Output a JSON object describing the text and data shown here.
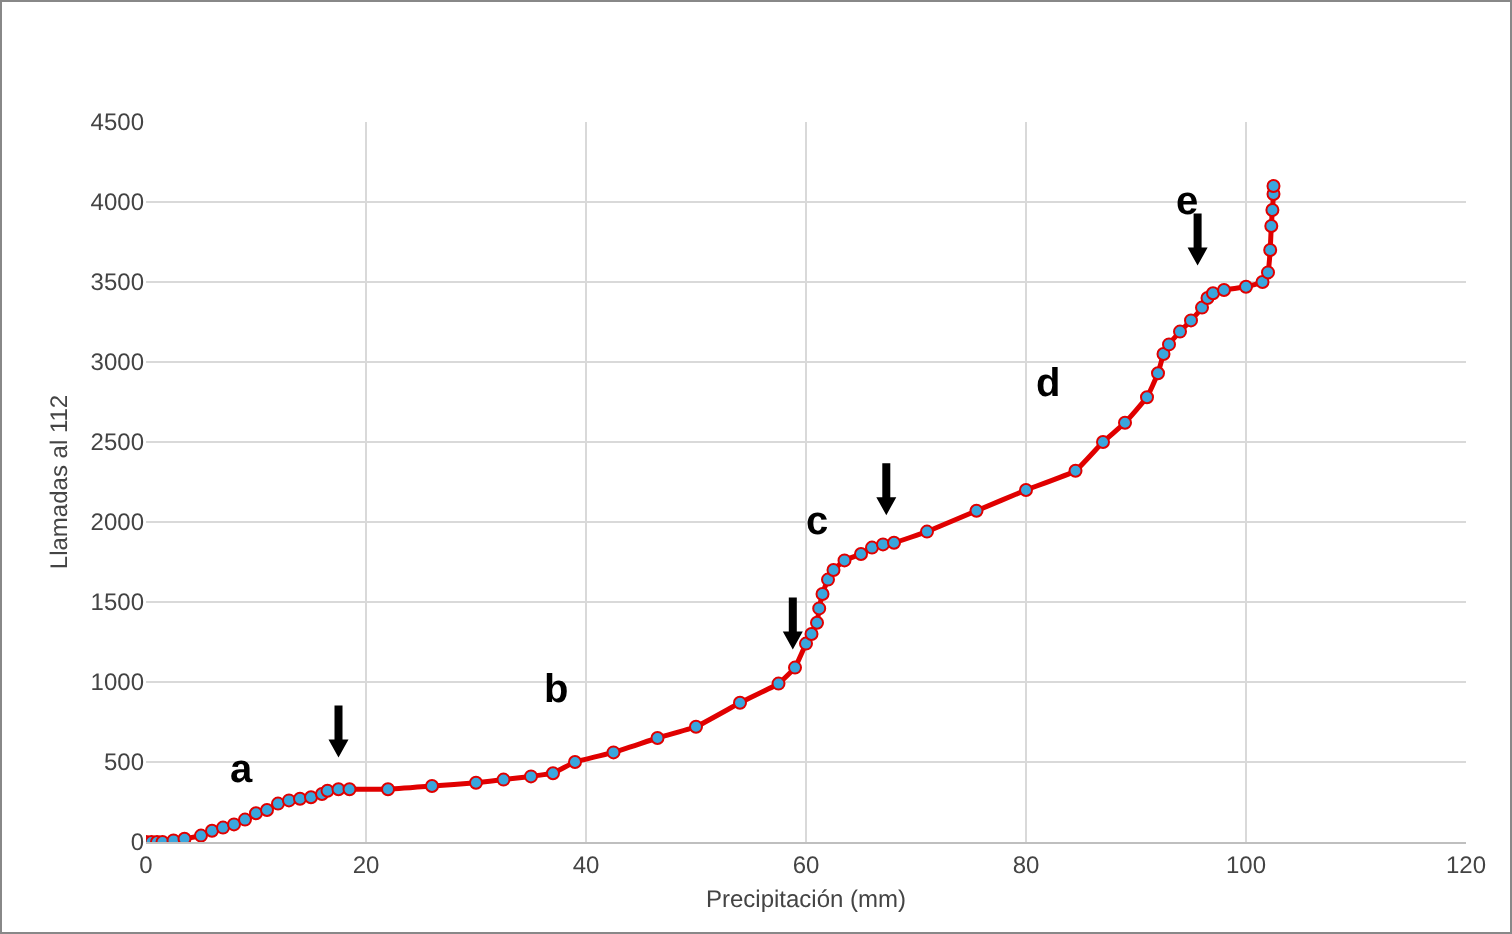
{
  "chart_data": {
    "type": "line",
    "xlabel": "Precipitación (mm)",
    "ylabel": "Llamadas al 112",
    "xlim": [
      0,
      120
    ],
    "xticks": [
      0,
      20,
      40,
      60,
      80,
      100,
      120
    ],
    "ylim": [
      0,
      4500
    ],
    "yticks": [
      0,
      500,
      1000,
      1500,
      2000,
      2500,
      3000,
      3500,
      4000,
      4500
    ],
    "grid": true,
    "marker": "circle",
    "line_style": "solid",
    "series": [
      {
        "color": "#e00000",
        "x": [
          0,
          0.5,
          1,
          1.5,
          2.5,
          3.5,
          5,
          6,
          7,
          8,
          9,
          10,
          11,
          12,
          13,
          14,
          15,
          16,
          16.5,
          17.5,
          18.5,
          22,
          26,
          30,
          32.5,
          35,
          37,
          39,
          42.5,
          46.5,
          50,
          54,
          57.5,
          59,
          60,
          60.5,
          61,
          61.2,
          61.5,
          62,
          62.5,
          63.5,
          65,
          66,
          67,
          68,
          71,
          75.5,
          80,
          84.5,
          87,
          89,
          91,
          92,
          92.5,
          93,
          94,
          95,
          96,
          96.5,
          97,
          98,
          100,
          101.5,
          102,
          102.2,
          102.3,
          102.4,
          102.5,
          102.5
        ],
        "values": [
          0,
          0,
          0,
          0,
          10,
          20,
          40,
          70,
          90,
          110,
          140,
          180,
          200,
          240,
          260,
          270,
          280,
          300,
          320,
          330,
          330,
          330,
          350,
          370,
          390,
          410,
          430,
          500,
          560,
          650,
          720,
          870,
          990,
          1090,
          1240,
          1300,
          1370,
          1460,
          1550,
          1640,
          1700,
          1760,
          1800,
          1840,
          1860,
          1870,
          1940,
          2070,
          2200,
          2320,
          2500,
          2620,
          2780,
          2930,
          3050,
          3110,
          3190,
          3260,
          3340,
          3400,
          3430,
          3450,
          3470,
          3500,
          3560,
          3700,
          3850,
          3950,
          4050,
          4100
        ]
      }
    ],
    "annotations": [
      "a",
      "b",
      "c",
      "d",
      "e"
    ]
  }
}
